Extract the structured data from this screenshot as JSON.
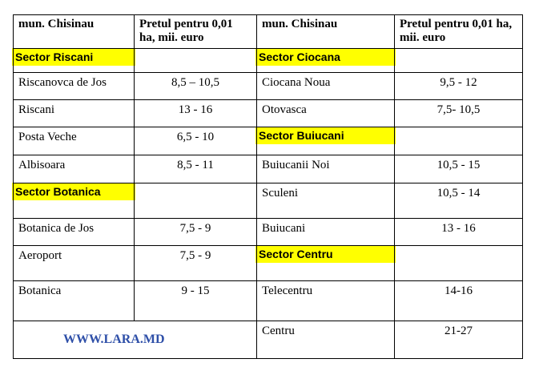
{
  "table": {
    "header": [
      "mun. Chisinau",
      "Pretul pentru 0,01 ha, mii. euro",
      "mun. Chisinau",
      "Pretul pentru 0,01 ha, mii. euro"
    ],
    "rows": [
      {
        "left": {
          "sector": "Sector Riscani"
        },
        "right": {
          "sector": "Sector Ciocana"
        }
      },
      {
        "left": {
          "name": "Riscanovca de Jos",
          "price": "8,5 – 10,5"
        },
        "right": {
          "name": "Ciocana Noua",
          "price": "9,5 - 12"
        }
      },
      {
        "left": {
          "name": "Riscani",
          "price": "13 - 16"
        },
        "right": {
          "name": "Otovasca",
          "price": "7,5- 10,5"
        }
      },
      {
        "left": {
          "name": "Posta Veche",
          "price": "6,5 - 10"
        },
        "right": {
          "sector": "Sector Buiucani"
        }
      },
      {
        "left": {
          "name": "Albisoara",
          "price": "8,5 - 11"
        },
        "right": {
          "name": "Buiucanii Noi",
          "price": "10,5 - 15"
        }
      },
      {
        "left": {
          "sector": "Sector Botanica"
        },
        "right": {
          "name": "Sculeni",
          "price": "10,5 - 14"
        }
      },
      {
        "left": {
          "name": "Botanica de Jos",
          "price": "7,5 - 9"
        },
        "right": {
          "name": "Buiucani",
          "price": "13 - 16"
        }
      },
      {
        "left": {
          "name": "Aeroport",
          "price": "7,5 - 9"
        },
        "right": {
          "sector": "Sector Centru"
        }
      },
      {
        "left": {
          "name": "Botanica",
          "price": "9 - 15"
        },
        "right": {
          "name": "Telecentru",
          "price": "14-16"
        }
      },
      {
        "left": {
          "link": "WWW.LARA.MD"
        },
        "right": {
          "name": "Centru",
          "price": "21-27"
        }
      }
    ]
  }
}
